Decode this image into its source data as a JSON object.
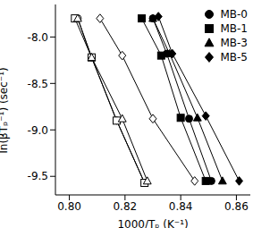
{
  "chart_data": {
    "type": "scatter",
    "xlabel": "1000/Tₚ (K⁻¹)",
    "ylabel": "ln(βTₚ⁻¹) (sec⁻¹)",
    "xlim": [
      0.795,
      0.865
    ],
    "ylim": [
      -9.7,
      -7.65
    ],
    "xticks": [
      {
        "value": 0.8,
        "label": "0.80"
      },
      {
        "value": 0.82,
        "label": "0.82"
      },
      {
        "value": 0.84,
        "label": "0.84"
      },
      {
        "value": 0.86,
        "label": "0.86"
      }
    ],
    "yticks": [
      {
        "value": -8,
        "label": "-8.0"
      },
      {
        "value": -8.5,
        "label": "-8.5"
      },
      {
        "value": -9,
        "label": "-9.0"
      },
      {
        "value": -9.5,
        "label": "-9.5"
      }
    ],
    "grid": false,
    "legend": "upper right",
    "line_style": "solid",
    "series": [
      {
        "color": "#000000",
        "marker": "circle_open",
        "x": [
          0.803,
          0.808,
          0.817,
          0.827
        ],
        "values": [
          -7.8,
          -8.22,
          -8.9,
          -9.57
        ]
      },
      {
        "color": "#000000",
        "marker": "square_open",
        "x": [
          0.802,
          0.808,
          0.817,
          0.827
        ],
        "values": [
          -7.8,
          -8.22,
          -8.9,
          -9.57
        ]
      },
      {
        "color": "#000000",
        "marker": "triangle_open",
        "x": [
          0.803,
          0.808,
          0.819,
          0.828
        ],
        "values": [
          -7.8,
          -8.22,
          -8.88,
          -9.55
        ]
      },
      {
        "color": "#000000",
        "marker": "diamond_open",
        "x": [
          0.811,
          0.819,
          0.83,
          0.845
        ],
        "values": [
          -7.8,
          -8.2,
          -8.88,
          -9.55
        ]
      },
      {
        "name": "MB-0",
        "color": "#000000",
        "marker": "circle",
        "x": [
          0.83,
          0.835,
          0.843,
          0.851
        ],
        "values": [
          -7.8,
          -8.18,
          -8.88,
          -9.55
        ]
      },
      {
        "name": "MB-1",
        "color": "#000000",
        "marker": "square",
        "x": [
          0.826,
          0.833,
          0.84,
          0.849
        ],
        "values": [
          -7.8,
          -8.2,
          -8.87,
          -9.55
        ]
      },
      {
        "name": "MB-3",
        "color": "#000000",
        "marker": "triangle",
        "x": [
          0.83,
          0.836,
          0.846,
          0.855
        ],
        "values": [
          -7.8,
          -8.18,
          -8.87,
          -9.55
        ]
      },
      {
        "name": "MB-5",
        "color": "#000000",
        "marker": "diamond",
        "x": [
          0.832,
          0.837,
          0.849,
          0.861
        ],
        "values": [
          -7.78,
          -8.18,
          -8.85,
          -9.55
        ]
      }
    ]
  }
}
